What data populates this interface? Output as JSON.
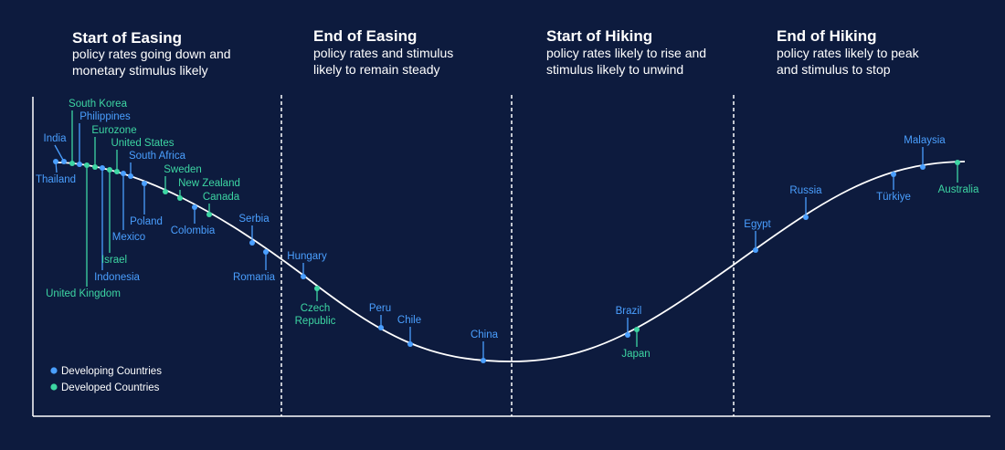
{
  "phases": [
    {
      "title": "Start of Easing",
      "line1": "policy rates going down and",
      "line2": "monetary stimulus likely"
    },
    {
      "title": "End of Easing",
      "line1": "policy rates and stimulus",
      "line2": "likely to remain steady"
    },
    {
      "title": "Start of Hiking",
      "line1": "policy rates likely to rise and",
      "line2": "stimulus likely to unwind"
    },
    {
      "title": "End of Hiking",
      "line1": "policy rates likely to peak",
      "line2": "and stimulus to stop"
    }
  ],
  "legend": {
    "developing": "Developing Countries",
    "developed": "Developed Countries"
  },
  "colors": {
    "background": "#0d1b3e",
    "developing": "#4a9fff",
    "developed": "#3dd6a3",
    "curve": "#ffffff"
  },
  "countries": [
    {
      "name": "Thailand",
      "group": "developing"
    },
    {
      "name": "India",
      "group": "developing"
    },
    {
      "name": "South Korea",
      "group": "developed"
    },
    {
      "name": "Philippines",
      "group": "developing"
    },
    {
      "name": "United Kingdom",
      "group": "developed"
    },
    {
      "name": "Eurozone",
      "group": "developed"
    },
    {
      "name": "Indonesia",
      "group": "developing"
    },
    {
      "name": "Israel",
      "group": "developed"
    },
    {
      "name": "United States",
      "group": "developed"
    },
    {
      "name": "Mexico",
      "group": "developing"
    },
    {
      "name": "South Africa",
      "group": "developing"
    },
    {
      "name": "Poland",
      "group": "developing"
    },
    {
      "name": "Sweden",
      "group": "developed"
    },
    {
      "name": "New Zealand",
      "group": "developed"
    },
    {
      "name": "Colombia",
      "group": "developing"
    },
    {
      "name": "Canada",
      "group": "developed"
    },
    {
      "name": "Serbia",
      "group": "developing"
    },
    {
      "name": "Romania",
      "group": "developing"
    },
    {
      "name": "Hungary",
      "group": "developing"
    },
    {
      "name": "Czech",
      "name2": "Republic",
      "group": "developed"
    },
    {
      "name": "Peru",
      "group": "developing"
    },
    {
      "name": "Chile",
      "group": "developing"
    },
    {
      "name": "China",
      "group": "developing"
    },
    {
      "name": "Brazil",
      "group": "developing"
    },
    {
      "name": "Japan",
      "group": "developed"
    },
    {
      "name": "Egypt",
      "group": "developing"
    },
    {
      "name": "Russia",
      "group": "developing"
    },
    {
      "name": "Türkiye",
      "group": "developing"
    },
    {
      "name": "Malaysia",
      "group": "developing"
    },
    {
      "name": "Australia",
      "group": "developed"
    }
  ]
}
